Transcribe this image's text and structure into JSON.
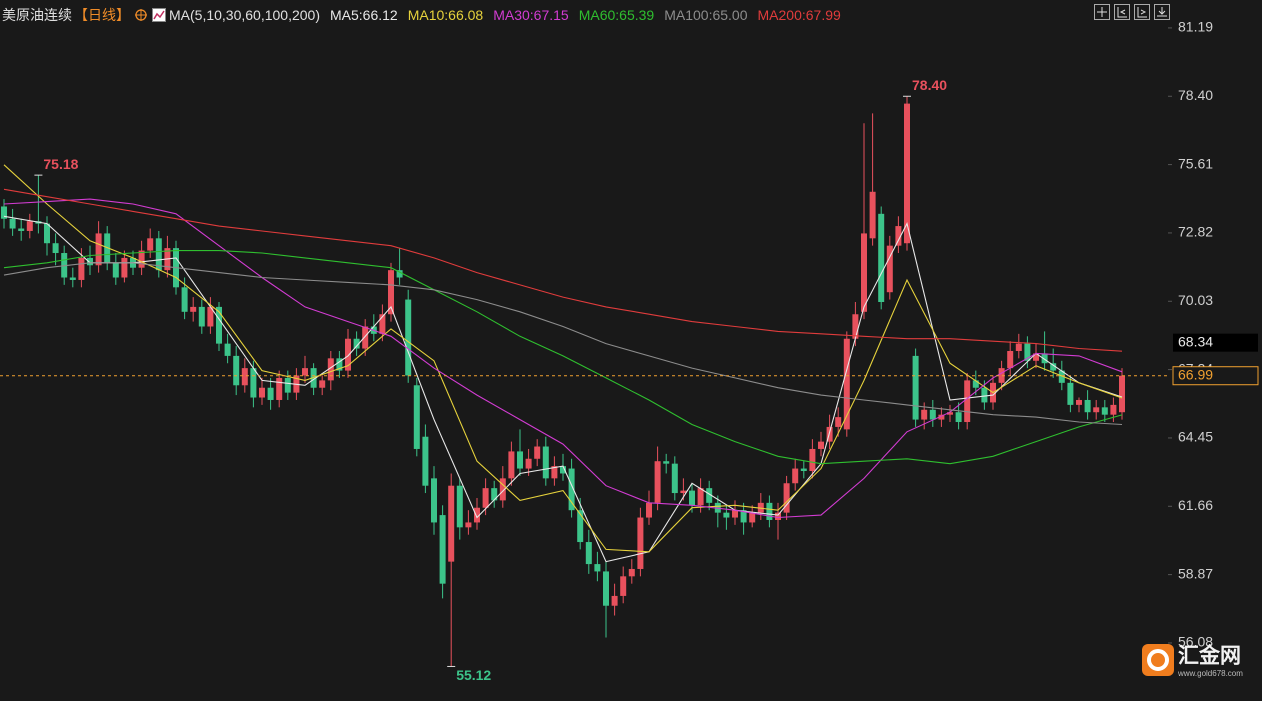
{
  "header": {
    "title": "美原油连续",
    "period": "【日线】",
    "indicator": "MA(5,10,30,60,100,200)"
  },
  "chart_data": {
    "type": "candlestick",
    "open": [
      73.9,
      73.4,
      73.0,
      72.9,
      73.3,
      73.2,
      72.4,
      72.0,
      71.0,
      70.9,
      71.8,
      71.5,
      72.8,
      71.6,
      71.0,
      71.8,
      71.4,
      72.1,
      72.6,
      71.3,
      72.2,
      70.6,
      69.6,
      69.8,
      69.0,
      69.8,
      68.3,
      67.8,
      66.6,
      67.3,
      66.1,
      66.5,
      66.0,
      66.9,
      66.3,
      67.0,
      67.3,
      66.5,
      66.8,
      67.7,
      67.2,
      68.5,
      68.1,
      69.0,
      68.7,
      69.5,
      71.3,
      70.1,
      66.6,
      64.5,
      62.8,
      61.3,
      59.4,
      62.5,
      60.8,
      61.0,
      61.6,
      62.4,
      61.9,
      62.8,
      63.9,
      63.2,
      63.6,
      64.1,
      62.8,
      63.3,
      63.2,
      61.5,
      60.2,
      59.3,
      59.0,
      57.6,
      58.0,
      58.8,
      59.1,
      61.2,
      61.8,
      63.5,
      63.4,
      62.2,
      62.3,
      61.7,
      62.4,
      61.8,
      61.4,
      61.2,
      61.5,
      61.0,
      61.4,
      61.8,
      61.1,
      61.4,
      62.6,
      63.2,
      63.1,
      64.0,
      64.3,
      64.9,
      64.8,
      68.5,
      69.6,
      72.6,
      73.6,
      70.4,
      72.3,
      72.4,
      67.8,
      65.2,
      65.6,
      65.2,
      65.4,
      65.5,
      65.1,
      66.8,
      66.5,
      65.9,
      66.7,
      67.3,
      68.0,
      68.3,
      67.6,
      67.9,
      67.5,
      67.2,
      66.7,
      65.8,
      66.0,
      65.5,
      65.7,
      65.4,
      65.5
    ],
    "high": [
      74.2,
      73.8,
      73.4,
      73.6,
      75.18,
      73.5,
      72.8,
      72.3,
      71.4,
      72.2,
      72.3,
      73.3,
      73.1,
      72.0,
      72.1,
      72.1,
      72.5,
      73.0,
      72.9,
      72.7,
      72.5,
      71.0,
      70.2,
      70.1,
      70.2,
      70.0,
      68.7,
      68.2,
      67.7,
      67.6,
      66.9,
      66.9,
      67.2,
      67.2,
      67.3,
      67.8,
      67.5,
      67.0,
      68.0,
      68.0,
      68.9,
      68.8,
      69.3,
      69.5,
      69.9,
      71.6,
      72.2,
      70.5,
      66.9,
      65.0,
      63.3,
      61.7,
      63.0,
      62.8,
      61.5,
      62.0,
      62.8,
      62.7,
      63.3,
      64.3,
      64.8,
      64.0,
      64.4,
      64.5,
      63.7,
      63.8,
      63.6,
      62.0,
      60.7,
      59.8,
      59.4,
      58.5,
      59.2,
      59.5,
      61.6,
      62.3,
      64.1,
      63.8,
      63.7,
      62.8,
      62.6,
      62.8,
      62.7,
      62.1,
      61.7,
      61.9,
      61.8,
      61.7,
      62.2,
      62.1,
      61.8,
      62.9,
      63.6,
      63.5,
      64.4,
      64.7,
      65.4,
      65.7,
      68.8,
      70.0,
      77.3,
      77.7,
      73.9,
      72.7,
      73.5,
      78.4,
      68.1,
      65.9,
      66.0,
      65.7,
      65.8,
      65.9,
      67.1,
      67.2,
      66.8,
      67.0,
      67.6,
      68.4,
      68.7,
      68.6,
      68.3,
      68.8,
      68.1,
      67.6,
      67.0,
      66.1,
      66.4,
      66.0,
      66.0,
      66.1,
      67.3
    ],
    "low": [
      73.0,
      72.7,
      72.5,
      72.6,
      72.8,
      71.9,
      71.5,
      70.7,
      70.6,
      70.6,
      71.1,
      71.2,
      71.3,
      70.7,
      70.8,
      71.1,
      71.1,
      71.8,
      71.0,
      71.0,
      70.3,
      69.3,
      69.2,
      68.7,
      68.7,
      68.0,
      67.5,
      66.2,
      66.3,
      65.7,
      65.8,
      65.6,
      65.7,
      66.0,
      66.0,
      66.7,
      66.2,
      66.2,
      66.4,
      66.9,
      66.9,
      67.8,
      67.8,
      68.4,
      68.4,
      69.2,
      70.7,
      66.7,
      63.7,
      62.2,
      60.5,
      57.9,
      55.12,
      60.3,
      60.5,
      60.7,
      61.3,
      61.6,
      61.6,
      62.5,
      62.9,
      62.9,
      63.3,
      62.5,
      62.5,
      62.7,
      61.2,
      59.9,
      58.9,
      58.6,
      56.3,
      57.2,
      57.7,
      58.5,
      58.8,
      60.9,
      61.5,
      63.0,
      61.9,
      61.9,
      61.4,
      61.4,
      61.5,
      60.8,
      60.7,
      60.9,
      60.5,
      60.8,
      61.1,
      60.8,
      60.3,
      61.1,
      62.3,
      62.8,
      62.8,
      63.7,
      64.0,
      64.5,
      64.5,
      68.2,
      69.3,
      72.3,
      69.7,
      70.1,
      72.0,
      72.1,
      64.9,
      64.8,
      64.9,
      64.9,
      65.1,
      64.8,
      64.8,
      66.2,
      65.6,
      65.6,
      66.4,
      67.0,
      67.7,
      67.3,
      67.3,
      67.2,
      66.9,
      66.4,
      65.5,
      65.5,
      65.2,
      65.2,
      65.1,
      65.1,
      65.2
    ],
    "close": [
      73.4,
      73.0,
      72.9,
      73.3,
      73.2,
      72.4,
      72.0,
      71.0,
      70.9,
      71.8,
      71.5,
      72.8,
      71.6,
      71.0,
      71.8,
      71.4,
      72.1,
      72.6,
      71.3,
      72.2,
      70.6,
      69.6,
      69.8,
      69.0,
      69.8,
      68.3,
      67.8,
      66.6,
      67.3,
      66.1,
      66.5,
      66.0,
      66.9,
      66.3,
      67.0,
      67.3,
      66.5,
      66.8,
      67.7,
      67.2,
      68.5,
      68.1,
      69.0,
      68.7,
      69.5,
      71.3,
      71.0,
      67.0,
      64.0,
      62.5,
      61.0,
      58.5,
      62.5,
      60.8,
      61.0,
      61.6,
      62.4,
      61.9,
      62.8,
      63.9,
      63.2,
      63.6,
      64.1,
      62.8,
      63.3,
      63.0,
      61.5,
      60.2,
      59.3,
      59.0,
      57.6,
      58.0,
      58.8,
      59.1,
      61.2,
      61.8,
      63.5,
      63.4,
      62.2,
      62.3,
      61.7,
      62.4,
      61.8,
      61.4,
      61.2,
      61.5,
      61.0,
      61.4,
      61.8,
      61.1,
      61.4,
      62.6,
      63.2,
      63.1,
      64.0,
      64.3,
      64.9,
      65.3,
      68.5,
      69.5,
      72.8,
      74.5,
      70.0,
      72.3,
      73.1,
      78.1,
      65.2,
      65.6,
      65.2,
      65.4,
      65.5,
      65.1,
      66.8,
      66.5,
      65.9,
      66.7,
      67.3,
      68.0,
      68.3,
      67.6,
      67.9,
      67.5,
      67.2,
      66.7,
      65.8,
      66.0,
      65.5,
      65.7,
      65.4,
      65.8,
      66.99
    ],
    "up_color": "#e8515d",
    "down_color": "#3cc48a",
    "ylim": [
      53.71,
      82.33
    ],
    "yticks": [
      81.19,
      {
        "value": 78.4,
        "label": "78.40"
      },
      75.61,
      72.82,
      70.03,
      67.24,
      64.45,
      61.66,
      58.87,
      56.08
    ],
    "ma_x": [
      0,
      5,
      10,
      15,
      20,
      25,
      30,
      35,
      40,
      45,
      50,
      55,
      60,
      65,
      70,
      75,
      80,
      85,
      90,
      95,
      100,
      105,
      110,
      115,
      120,
      125,
      130
    ],
    "moving_averages": [
      {
        "name": "MA5:66.12",
        "color": "#e8e8e8",
        "values": [
          73.5,
          73.2,
          71.6,
          71.6,
          71.8,
          69.3,
          66.8,
          66.6,
          67.8,
          69.8,
          65.2,
          61.2,
          63.0,
          63.3,
          59.4,
          59.8,
          62.6,
          61.5,
          61.3,
          63.4,
          69.8,
          73.2,
          66.0,
          66.2,
          67.9,
          66.7,
          66.12
        ]
      },
      {
        "name": "MA10:66.08",
        "color": "#e6d23c",
        "values": [
          75.6,
          74.0,
          72.5,
          71.8,
          71.0,
          69.6,
          67.2,
          66.8,
          67.4,
          68.9,
          67.6,
          63.5,
          61.9,
          62.3,
          59.9,
          59.8,
          61.6,
          61.7,
          61.5,
          63.2,
          66.8,
          70.9,
          67.5,
          66.3,
          67.4,
          66.7,
          66.08
        ]
      },
      {
        "name": "MA30:67.15",
        "color": "#d23cd2",
        "values": [
          74.0,
          74.1,
          74.2,
          74.0,
          73.6,
          72.3,
          71.0,
          69.8,
          69.2,
          68.6,
          67.3,
          66.2,
          65.2,
          64.2,
          62.5,
          61.8,
          61.7,
          61.5,
          61.2,
          61.3,
          62.8,
          64.7,
          65.5,
          66.9,
          67.9,
          67.8,
          67.15
        ]
      },
      {
        "name": "MA60:65.39",
        "color": "#2fbf2f",
        "values": [
          71.4,
          71.6,
          71.9,
          72.0,
          72.1,
          72.1,
          72.0,
          71.8,
          71.6,
          71.4,
          70.5,
          69.6,
          68.6,
          67.8,
          66.9,
          66.0,
          65.0,
          64.3,
          63.7,
          63.4,
          63.5,
          63.6,
          63.4,
          63.7,
          64.3,
          64.9,
          65.39
        ]
      },
      {
        "name": "MA100:65.00",
        "color": "#8c8c8c",
        "values": [
          71.1,
          71.4,
          71.6,
          71.6,
          71.4,
          71.2,
          71.0,
          70.9,
          70.8,
          70.7,
          70.5,
          70.1,
          69.6,
          69.0,
          68.3,
          67.8,
          67.3,
          66.9,
          66.5,
          66.2,
          66.0,
          65.8,
          65.6,
          65.4,
          65.3,
          65.1,
          65.0
        ]
      },
      {
        "name": "MA200:67.99",
        "color": "#e03c3c",
        "values": [
          74.6,
          74.3,
          74.0,
          73.7,
          73.4,
          73.1,
          72.9,
          72.7,
          72.5,
          72.3,
          71.8,
          71.2,
          70.7,
          70.2,
          69.8,
          69.5,
          69.2,
          69.0,
          68.8,
          68.7,
          68.6,
          68.5,
          68.5,
          68.4,
          68.3,
          68.1,
          67.99
        ]
      }
    ],
    "annotations": [
      {
        "value": 75.18,
        "label": "75.18"
      },
      {
        "value": 78.4,
        "label": "78.40"
      },
      {
        "value": 55.12,
        "label": "55.12"
      }
    ],
    "last_price": {
      "value": 66.99,
      "color": "#f0a030"
    },
    "price_tag": 68.34
  },
  "watermark": {
    "brand": "汇金网",
    "url": "www.gold678.com"
  }
}
